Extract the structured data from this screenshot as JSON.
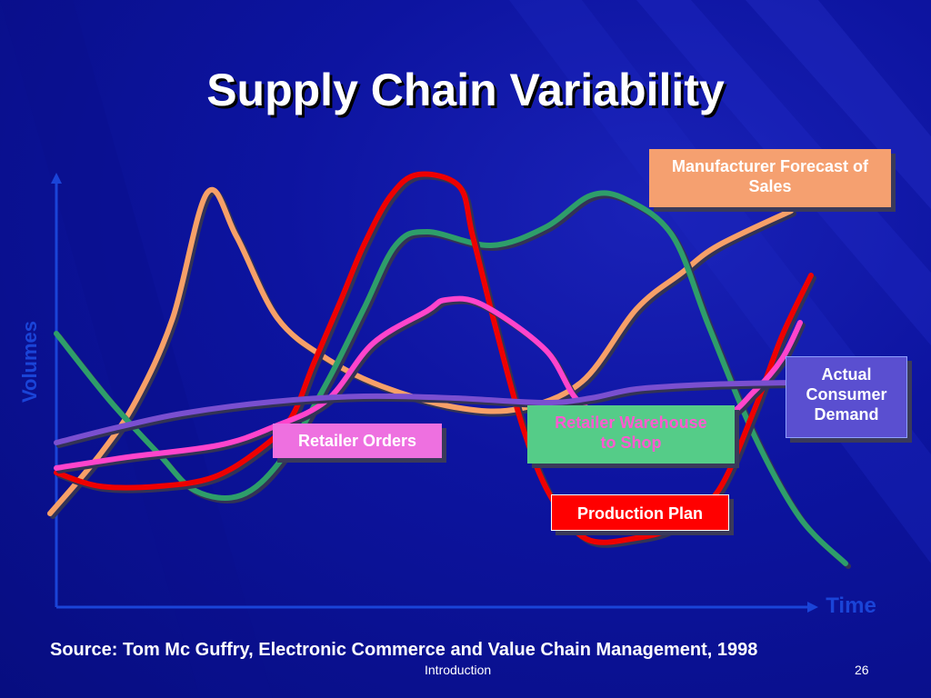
{
  "slide": {
    "title": "Supply Chain Variability",
    "source": "Source: Tom Mc Guffry, Electronic Commerce and Value Chain Management, 1998",
    "footer": "Introduction",
    "page_number": "26"
  },
  "chart_data": {
    "type": "line",
    "xlabel": "Time",
    "ylabel": "Volumes",
    "colors": {
      "manufacturer_forecast": "#f7a068",
      "retailer_warehouse": "#2e9e6a",
      "production_plan": "#ee0000",
      "retailer_orders": "#ff44cc",
      "actual_demand": "#7a4fd0"
    },
    "series": [
      {
        "name": "Manufacturer Forecast of Sales",
        "color_key": "manufacturer_forecast",
        "points": [
          [
            55,
            565
          ],
          [
            110,
            500
          ],
          [
            150,
            440
          ],
          [
            190,
            350
          ],
          [
            228,
            212
          ],
          [
            260,
            260
          ],
          [
            305,
            350
          ],
          [
            360,
            395
          ],
          [
            420,
            425
          ],
          [
            500,
            448
          ],
          [
            570,
            450
          ],
          [
            640,
            420
          ],
          [
            700,
            340
          ],
          [
            750,
            300
          ],
          [
            790,
            270
          ],
          [
            870,
            232
          ]
        ]
      },
      {
        "name": "Retailer Warehouse to Shop",
        "color_key": "retailer_warehouse",
        "points": [
          [
            62,
            367
          ],
          [
            120,
            440
          ],
          [
            175,
            500
          ],
          [
            215,
            540
          ],
          [
            265,
            545
          ],
          [
            310,
            505
          ],
          [
            360,
            420
          ],
          [
            400,
            340
          ],
          [
            435,
            270
          ],
          [
            470,
            255
          ],
          [
            540,
            270
          ],
          [
            600,
            250
          ],
          [
            650,
            215
          ],
          [
            690,
            220
          ],
          [
            740,
            260
          ],
          [
            780,
            360
          ],
          [
            830,
            480
          ],
          [
            880,
            570
          ],
          [
            930,
            620
          ]
        ]
      },
      {
        "name": "Production Plan",
        "color_key": "production_plan",
        "points": [
          [
            62,
            520
          ],
          [
            110,
            535
          ],
          [
            175,
            535
          ],
          [
            235,
            525
          ],
          [
            285,
            495
          ],
          [
            320,
            460
          ],
          [
            345,
            400
          ],
          [
            375,
            330
          ],
          [
            400,
            270
          ],
          [
            430,
            215
          ],
          [
            460,
            192
          ],
          [
            505,
            205
          ],
          [
            520,
            260
          ],
          [
            545,
            360
          ],
          [
            575,
            470
          ],
          [
            605,
            545
          ],
          [
            645,
            593
          ],
          [
            700,
            592
          ],
          [
            745,
            578
          ],
          [
            790,
            540
          ],
          [
            830,
            450
          ],
          [
            860,
            370
          ],
          [
            892,
            303
          ]
        ]
      },
      {
        "name": "Retailer Orders",
        "color_key": "retailer_orders",
        "points": [
          [
            62,
            515
          ],
          [
            140,
            503
          ],
          [
            240,
            490
          ],
          [
            300,
            470
          ],
          [
            360,
            440
          ],
          [
            410,
            378
          ],
          [
            470,
            342
          ],
          [
            490,
            330
          ],
          [
            530,
            335
          ],
          [
            600,
            385
          ],
          [
            640,
            445
          ],
          [
            700,
            460
          ],
          [
            790,
            460
          ],
          [
            830,
            430
          ],
          [
            860,
            395
          ],
          [
            880,
            355
          ]
        ]
      },
      {
        "name": "Actual Consumer Demand",
        "color_key": "actual_demand",
        "points": [
          [
            62,
            487
          ],
          [
            130,
            470
          ],
          [
            200,
            455
          ],
          [
            300,
            442
          ],
          [
            400,
            436
          ],
          [
            500,
            438
          ],
          [
            600,
            443
          ],
          [
            650,
            438
          ],
          [
            700,
            428
          ],
          [
            780,
            423
          ],
          [
            870,
            421
          ]
        ]
      }
    ]
  },
  "labels": {
    "manufacturer": "Manufacturer Forecast of Sales",
    "actual_line1": "Actual",
    "actual_line2": "Consumer",
    "actual_line3": "Demand",
    "warehouse_line1": "Retailer Warehouse",
    "warehouse_line2": "to Shop",
    "orders": "Retailer Orders",
    "production": "Production Plan"
  }
}
